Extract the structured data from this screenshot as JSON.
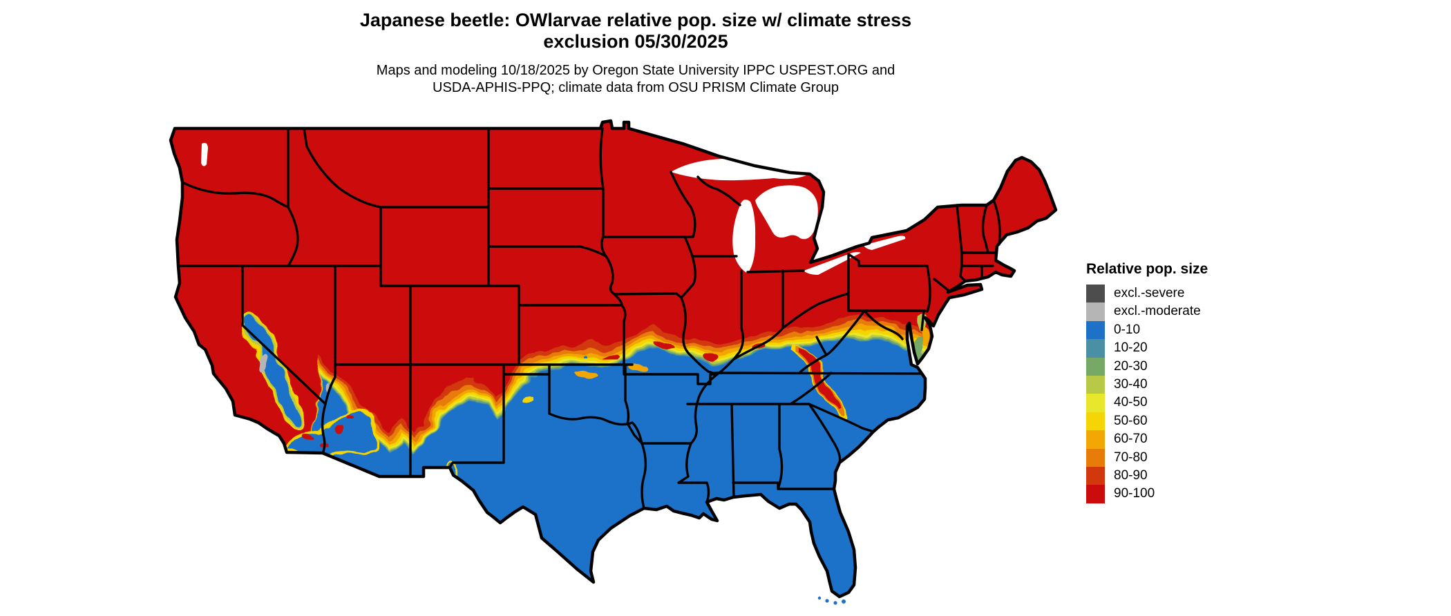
{
  "title": {
    "line1": "Japanese beetle: OWlarvae relative pop. size w/ climate stress",
    "line2": "exclusion 05/30/2025"
  },
  "subtitle": {
    "line1": "Maps and modeling 10/18/2025 by Oregon State University IPPC USPEST.ORG and",
    "line2": "USDA-APHIS-PPQ; climate data from OSU PRISM Climate Group"
  },
  "legend": {
    "title": "Relative pop. size",
    "items": [
      {
        "label": "excl.-severe",
        "color": "#4d4d4d"
      },
      {
        "label": "excl.-moderate",
        "color": "#b5b5b5"
      },
      {
        "label": "0-10",
        "color": "#1d72c8"
      },
      {
        "label": "10-20",
        "color": "#4b8fa4"
      },
      {
        "label": "20-30",
        "color": "#76a965"
      },
      {
        "label": "30-40",
        "color": "#b7c947"
      },
      {
        "label": "40-50",
        "color": "#e8e72b"
      },
      {
        "label": "50-60",
        "color": "#f5d506"
      },
      {
        "label": "60-70",
        "color": "#f2a705"
      },
      {
        "label": "70-80",
        "color": "#e77c08"
      },
      {
        "label": "80-90",
        "color": "#d1390d"
      },
      {
        "label": "90-100",
        "color": "#cc0b0d"
      }
    ]
  },
  "map": {
    "region": "Continental United States",
    "north_region_class": "90-100",
    "south_region_class": "0-10",
    "outline_color": "#000000",
    "background": "#ffffff"
  }
}
